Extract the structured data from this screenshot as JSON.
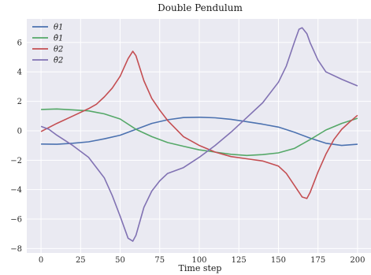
{
  "chart_data": {
    "type": "line",
    "title": "Double Pendulum",
    "xlabel": "Time step",
    "ylabel": "",
    "xlim": [
      -9,
      209
    ],
    "ylim": [
      -8.3,
      7.6
    ],
    "xticks": [
      0,
      25,
      50,
      75,
      100,
      125,
      150,
      175,
      200
    ],
    "yticks": [
      -8,
      -6,
      -4,
      -2,
      0,
      2,
      4,
      6
    ],
    "grid": true,
    "legend_position": "top-left",
    "series": [
      {
        "name": "θ1",
        "color": "#4C72B0",
        "x": [
          0,
          10,
          20,
          30,
          40,
          50,
          60,
          70,
          80,
          90,
          100,
          110,
          120,
          130,
          140,
          150,
          160,
          170,
          180,
          190,
          200
        ],
        "y": [
          -0.9,
          -0.92,
          -0.85,
          -0.75,
          -0.55,
          -0.3,
          0.1,
          0.5,
          0.75,
          0.9,
          0.92,
          0.88,
          0.78,
          0.62,
          0.45,
          0.25,
          -0.1,
          -0.5,
          -0.85,
          -1.0,
          -0.92
        ]
      },
      {
        "name": "θ̇1",
        "color": "#55A868",
        "x": [
          0,
          10,
          20,
          30,
          40,
          50,
          60,
          70,
          80,
          90,
          100,
          110,
          120,
          130,
          140,
          150,
          160,
          170,
          180,
          190,
          200
        ],
        "y": [
          1.45,
          1.48,
          1.42,
          1.35,
          1.15,
          0.8,
          0.1,
          -0.4,
          -0.8,
          -1.05,
          -1.3,
          -1.45,
          -1.6,
          -1.68,
          -1.62,
          -1.5,
          -1.2,
          -0.6,
          0.05,
          0.5,
          0.85
        ]
      },
      {
        "name": "θ2",
        "color": "#C44E52",
        "x": [
          0,
          10,
          20,
          30,
          35,
          40,
          45,
          50,
          55,
          58,
          60,
          65,
          70,
          75,
          80,
          90,
          100,
          110,
          120,
          130,
          140,
          150,
          155,
          160,
          165,
          168,
          170,
          175,
          180,
          185,
          190,
          195,
          200
        ],
        "y": [
          -0.05,
          0.5,
          1.0,
          1.5,
          1.8,
          2.3,
          2.9,
          3.7,
          4.9,
          5.4,
          5.1,
          3.4,
          2.2,
          1.4,
          0.7,
          -0.4,
          -1.0,
          -1.45,
          -1.75,
          -1.9,
          -2.05,
          -2.4,
          -2.9,
          -3.7,
          -4.5,
          -4.6,
          -4.2,
          -2.8,
          -1.6,
          -0.6,
          0.1,
          0.6,
          1.05
        ]
      },
      {
        "name": "θ̇2",
        "color": "#8172B3",
        "x": [
          0,
          5,
          10,
          20,
          30,
          40,
          45,
          50,
          55,
          58,
          60,
          65,
          70,
          75,
          80,
          90,
          100,
          110,
          120,
          130,
          140,
          150,
          155,
          160,
          163,
          165,
          168,
          170,
          175,
          180,
          190,
          200
        ],
        "y": [
          0.3,
          0.1,
          -0.3,
          -1.0,
          -1.8,
          -3.2,
          -4.4,
          -5.8,
          -7.3,
          -7.5,
          -7.1,
          -5.2,
          -4.1,
          -3.4,
          -2.9,
          -2.5,
          -1.8,
          -1.0,
          -0.1,
          0.9,
          1.9,
          3.3,
          4.4,
          6.0,
          6.9,
          7.0,
          6.6,
          6.0,
          4.8,
          4.0,
          3.5,
          3.05
        ]
      }
    ]
  }
}
